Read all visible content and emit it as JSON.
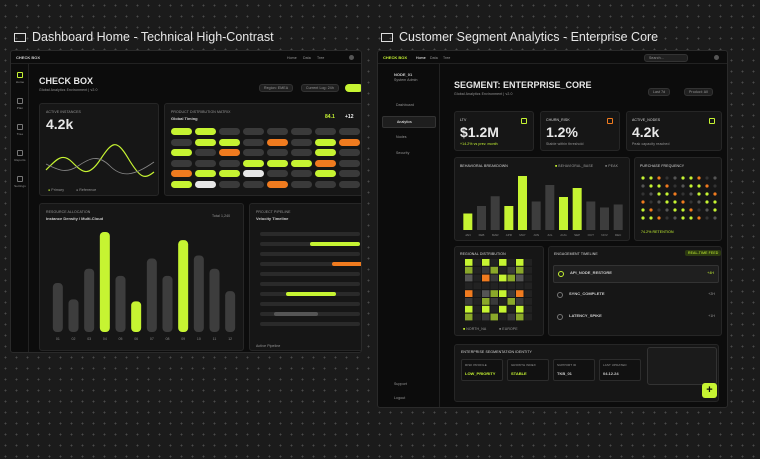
{
  "left": {
    "caption": "Dashboard Home - Technical High-Contrast",
    "brand": "CHECK BOX",
    "nav": [
      "Home",
      "Plan",
      "Tree",
      "Reports",
      "Settings"
    ],
    "top_nav": [
      "Home",
      "Data",
      "Tree"
    ],
    "header": {
      "title": "CHECK BOX",
      "subtitle": "Global Analytics Environment | v2.0",
      "region": "Region: EMEA",
      "log": "Current Log: 24h"
    },
    "active": {
      "label": "ACTIVE INSTANCES",
      "value": "4.2k",
      "legend": [
        "Primary",
        "Reference"
      ]
    },
    "matrix": {
      "label": "PRODUCT DISTRIBUTION MATRIX",
      "title": "Global Timing",
      "stats": [
        "84.1",
        "+12"
      ]
    },
    "density": {
      "label": "RESOURCE ALLOCATION",
      "title": "Instance Density / Multi-Cloud",
      "total": "Total 1,240",
      "categories": [
        "01",
        "02",
        "03",
        "04",
        "05",
        "06",
        "07",
        "08",
        "09",
        "10",
        "11",
        "12"
      ],
      "values": [
        48,
        32,
        62,
        98,
        55,
        30,
        72,
        55,
        90,
        75,
        62,
        40
      ],
      "colors": [
        "#3d3d3d",
        "#3d3d3d",
        "#3d3d3d",
        "#c6f432",
        "#3d3d3d",
        "#c6f432",
        "#3d3d3d",
        "#3d3d3d",
        "#c6f432",
        "#3d3d3d",
        "#3d3d3d",
        "#3d3d3d"
      ]
    },
    "pipeline": {
      "label": "PROJECT PIPELINE",
      "title": "Velocity Timeline",
      "footer": "Active Pipeline"
    }
  },
  "right": {
    "caption": "Customer Segment Analytics - Enterprise Core",
    "brand": "CHECK BOX",
    "top_nav": [
      "Home",
      "Data",
      "Tree"
    ],
    "search": "Search...",
    "user": {
      "name": "NODE_01",
      "role": "System Admin"
    },
    "nav": [
      "Dashboard",
      "Analytics",
      "Nodes",
      "Security"
    ],
    "nav_bottom": [
      "Support",
      "Logout"
    ],
    "header": {
      "title": "SEGMENT: ENTERPRISE_CORE",
      "subtitle": "Global Analytics Environment | v2.0",
      "range": "Last 7d",
      "product": "Product: All"
    },
    "kpis": [
      {
        "label": "LTV",
        "value": "$1.2M",
        "note": "+14.2% vs prev. month"
      },
      {
        "label": "CHURN_RISK",
        "value": "1.2%",
        "note": "Stable within threshold"
      },
      {
        "label": "ACTIVE_NODES",
        "value": "4.2k",
        "note": "Peak capacity reached"
      }
    ],
    "behavior": {
      "label": "BEHAVIORAL BREAKDOWN",
      "legend": [
        "BEHAVIORAL_BASE",
        "PEAK"
      ],
      "categories": [
        "JAN",
        "FEB",
        "MAR",
        "APR",
        "MAY",
        "JUN",
        "JUL",
        "AUG",
        "SEP",
        "OCT",
        "NOV",
        "DEC"
      ],
      "values": [
        22,
        32,
        45,
        32,
        72,
        38,
        60,
        44,
        56,
        38,
        30,
        34
      ],
      "colors": [
        "#c6f432",
        "#3d3d3d",
        "#3d3d3d",
        "#c6f432",
        "#c6f432",
        "#3d3d3d",
        "#3d3d3d",
        "#c6f432",
        "#c6f432",
        "#3d3d3d",
        "#3d3d3d",
        "#3d3d3d"
      ]
    },
    "purchase": {
      "label": "PURCHASE FREQUENCY",
      "note": "74.2% RETENTION"
    },
    "regional": {
      "label": "REGIONAL DISTRIBUTION",
      "legend": [
        "NORTH_NA",
        "EUROPE"
      ]
    },
    "timeline": {
      "label": "ENGAGEMENT TIMELINE",
      "badge": "REAL-TIME FEED",
      "items": [
        {
          "title": "API_NODE_RESTORE",
          "time": "+4H"
        },
        {
          "title": "SYNC_COMPLETE",
          "time": "+2H"
        },
        {
          "title": "LATENCY_SPIKE",
          "time": "+1H"
        }
      ]
    },
    "identity": {
      "label": "ENTERPRISE SEGMENTATION IDENTITY",
      "fields": [
        {
          "label": "RISK PROFILE",
          "value": "LOW_PRIORITY"
        },
        {
          "label": "GROWTH INDEX",
          "value": "STABLE"
        },
        {
          "label": "SUPPORT ID",
          "value": "TKB_01"
        },
        {
          "label": "LAST UPDATED",
          "value": "04.12.24"
        }
      ],
      "fab": "+"
    }
  }
}
